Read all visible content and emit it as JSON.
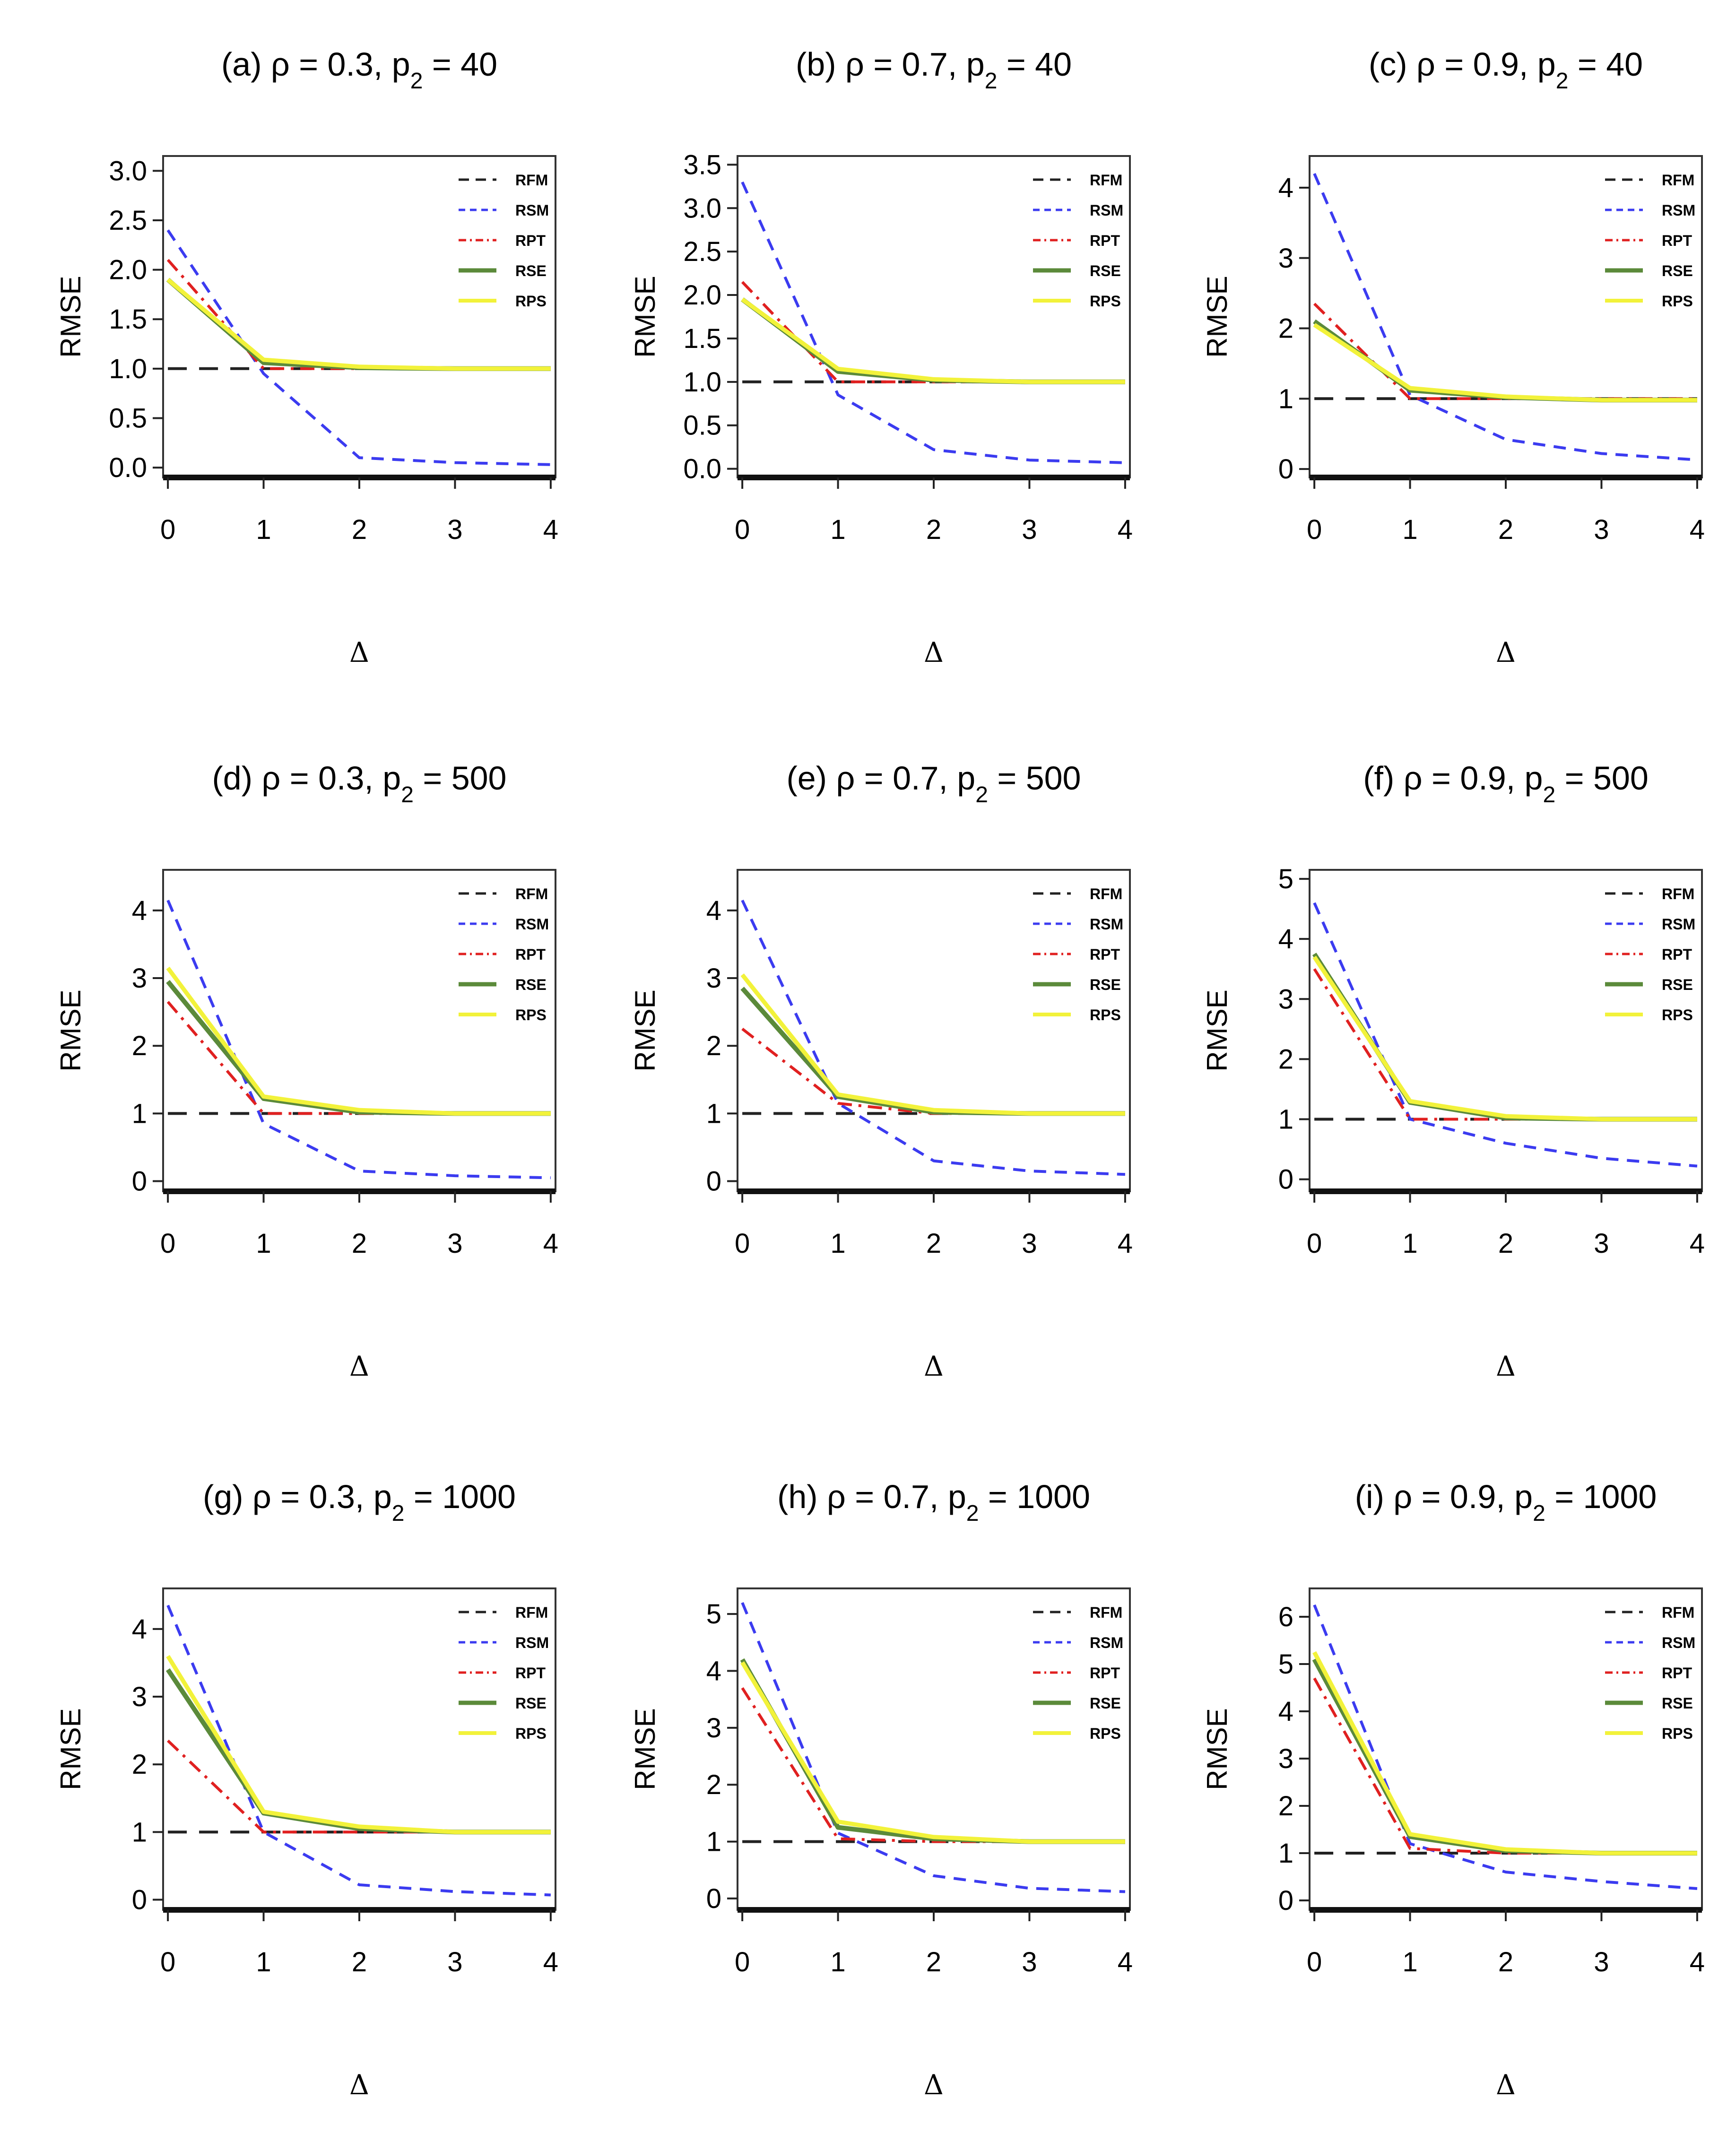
{
  "chart_data": [
    {
      "type": "line",
      "title": {
        "prefix": "(a) ρ = 0.3, p",
        "sub": "2",
        "suffix": " = 40"
      },
      "xlabel": "Δ",
      "ylabel": "RMSE",
      "x": [
        0,
        1,
        2,
        3,
        4
      ],
      "xticks": [
        "0",
        "1",
        "2",
        "3",
        "4"
      ],
      "ylim": [
        -0.1,
        3.15
      ],
      "yticks": [
        0.0,
        0.5,
        1.0,
        1.5,
        2.0,
        2.5,
        3.0
      ],
      "ytick_labels": [
        "0.0",
        "0.5",
        "1.0",
        "1.5",
        "2.0",
        "2.5",
        "3.0"
      ],
      "series": [
        {
          "name": "RFM",
          "values": [
            1.0,
            1.0,
            1.0,
            1.0,
            1.0
          ]
        },
        {
          "name": "RSM",
          "values": [
            2.4,
            0.95,
            0.1,
            0.05,
            0.03
          ]
        },
        {
          "name": "RPT",
          "values": [
            2.1,
            1.0,
            1.0,
            1.0,
            1.0
          ]
        },
        {
          "name": "RSE",
          "values": [
            1.9,
            1.06,
            1.01,
            1.0,
            1.0
          ]
        },
        {
          "name": "RPS",
          "values": [
            1.9,
            1.09,
            1.02,
            1.0,
            1.0
          ]
        }
      ]
    },
    {
      "type": "line",
      "title": {
        "prefix": "(b) ρ = 0.7, p",
        "sub": "2",
        "suffix": " = 40"
      },
      "xlabel": "Δ",
      "ylabel": "RMSE",
      "x": [
        0,
        1,
        2,
        3,
        4
      ],
      "xticks": [
        "0",
        "1",
        "2",
        "3",
        "4"
      ],
      "ylim": [
        -0.1,
        3.6
      ],
      "yticks": [
        0.0,
        0.5,
        1.0,
        1.5,
        2.0,
        2.5,
        3.0,
        3.5
      ],
      "ytick_labels": [
        "0.0",
        "0.5",
        "1.0",
        "1.5",
        "2.0",
        "2.5",
        "3.0",
        "3.5"
      ],
      "series": [
        {
          "name": "RFM",
          "values": [
            1.0,
            1.0,
            1.0,
            1.0,
            1.0
          ]
        },
        {
          "name": "RSM",
          "values": [
            3.3,
            0.85,
            0.22,
            0.1,
            0.07
          ]
        },
        {
          "name": "RPT",
          "values": [
            2.15,
            1.0,
            1.0,
            1.0,
            1.0
          ]
        },
        {
          "name": "RSE",
          "values": [
            1.95,
            1.12,
            1.02,
            1.0,
            1.0
          ]
        },
        {
          "name": "RPS",
          "values": [
            1.95,
            1.15,
            1.03,
            1.0,
            1.0
          ]
        }
      ]
    },
    {
      "type": "line",
      "title": {
        "prefix": "(c) ρ = 0.9, p",
        "sub": "2",
        "suffix": " = 40"
      },
      "xlabel": "Δ",
      "ylabel": "RMSE",
      "x": [
        0,
        1,
        2,
        3,
        4
      ],
      "xticks": [
        "0",
        "1",
        "2",
        "3",
        "4"
      ],
      "ylim": [
        -0.12,
        4.45
      ],
      "yticks": [
        0,
        1,
        2,
        3,
        4
      ],
      "ytick_labels": [
        "0",
        "1",
        "2",
        "3",
        "4"
      ],
      "series": [
        {
          "name": "RFM",
          "values": [
            1.0,
            1.0,
            1.0,
            1.0,
            1.0
          ]
        },
        {
          "name": "RSM",
          "values": [
            4.2,
            1.05,
            0.42,
            0.22,
            0.13
          ]
        },
        {
          "name": "RPT",
          "values": [
            2.35,
            1.0,
            1.0,
            1.0,
            1.0
          ]
        },
        {
          "name": "RSE",
          "values": [
            2.1,
            1.12,
            1.02,
            0.98,
            0.98
          ]
        },
        {
          "name": "RPS",
          "values": [
            2.05,
            1.15,
            1.03,
            0.98,
            0.98
          ]
        }
      ]
    },
    {
      "type": "line",
      "title": {
        "prefix": "(d) ρ = 0.3, p",
        "sub": "2",
        "suffix": " = 500"
      },
      "xlabel": "Δ",
      "ylabel": "RMSE",
      "x": [
        0,
        1,
        2,
        3,
        4
      ],
      "xticks": [
        "0",
        "1",
        "2",
        "3",
        "4"
      ],
      "ylim": [
        -0.15,
        4.6
      ],
      "yticks": [
        0,
        1,
        2,
        3,
        4
      ],
      "ytick_labels": [
        "0",
        "1",
        "2",
        "3",
        "4"
      ],
      "series": [
        {
          "name": "RFM",
          "values": [
            1.0,
            1.0,
            1.0,
            1.0,
            1.0
          ]
        },
        {
          "name": "RSM",
          "values": [
            4.15,
            0.85,
            0.15,
            0.08,
            0.05
          ]
        },
        {
          "name": "RPT",
          "values": [
            2.65,
            1.0,
            1.0,
            1.0,
            1.0
          ]
        },
        {
          "name": "RSE",
          "values": [
            2.95,
            1.22,
            1.02,
            1.0,
            1.0
          ]
        },
        {
          "name": "RPS",
          "values": [
            3.15,
            1.25,
            1.05,
            1.0,
            1.0
          ]
        }
      ]
    },
    {
      "type": "line",
      "title": {
        "prefix": "(e) ρ = 0.7, p",
        "sub": "2",
        "suffix": " = 500"
      },
      "xlabel": "Δ",
      "ylabel": "RMSE",
      "x": [
        0,
        1,
        2,
        3,
        4
      ],
      "xticks": [
        "0",
        "1",
        "2",
        "3",
        "4"
      ],
      "ylim": [
        -0.15,
        4.6
      ],
      "yticks": [
        0,
        1,
        2,
        3,
        4
      ],
      "ytick_labels": [
        "0",
        "1",
        "2",
        "3",
        "4"
      ],
      "series": [
        {
          "name": "RFM",
          "values": [
            1.0,
            1.0,
            1.0,
            1.0,
            1.0
          ]
        },
        {
          "name": "RSM",
          "values": [
            4.15,
            1.15,
            0.3,
            0.15,
            0.1
          ]
        },
        {
          "name": "RPT",
          "values": [
            2.25,
            1.15,
            1.0,
            1.0,
            1.0
          ]
        },
        {
          "name": "RSE",
          "values": [
            2.85,
            1.25,
            1.02,
            1.0,
            1.0
          ]
        },
        {
          "name": "RPS",
          "values": [
            3.05,
            1.28,
            1.05,
            1.0,
            1.0
          ]
        }
      ]
    },
    {
      "type": "line",
      "title": {
        "prefix": "(f) ρ = 0.9, p",
        "sub": "2",
        "suffix": " = 500"
      },
      "xlabel": "Δ",
      "ylabel": "RMSE",
      "x": [
        0,
        1,
        2,
        3,
        4
      ],
      "xticks": [
        "0",
        "1",
        "2",
        "3",
        "4"
      ],
      "ylim": [
        -0.2,
        5.15
      ],
      "yticks": [
        0,
        1,
        2,
        3,
        4,
        5
      ],
      "ytick_labels": [
        "0",
        "1",
        "2",
        "3",
        "4",
        "5"
      ],
      "series": [
        {
          "name": "RFM",
          "values": [
            1.0,
            1.0,
            1.0,
            1.0,
            1.0
          ]
        },
        {
          "name": "RSM",
          "values": [
            4.6,
            1.0,
            0.6,
            0.35,
            0.22
          ]
        },
        {
          "name": "RPT",
          "values": [
            3.5,
            1.0,
            1.0,
            1.0,
            1.0
          ]
        },
        {
          "name": "RSE",
          "values": [
            3.75,
            1.28,
            1.02,
            1.0,
            1.0
          ]
        },
        {
          "name": "RPS",
          "values": [
            3.7,
            1.3,
            1.05,
            1.0,
            1.0
          ]
        }
      ]
    },
    {
      "type": "line",
      "title": {
        "prefix": "(g) ρ = 0.3, p",
        "sub": "2",
        "suffix": " = 1000"
      },
      "xlabel": "Δ",
      "ylabel": "RMSE",
      "x": [
        0,
        1,
        2,
        3,
        4
      ],
      "xticks": [
        "0",
        "1",
        "2",
        "3",
        "4"
      ],
      "ylim": [
        -0.15,
        4.6
      ],
      "yticks": [
        0,
        1,
        2,
        3,
        4
      ],
      "ytick_labels": [
        "0",
        "1",
        "2",
        "3",
        "4"
      ],
      "series": [
        {
          "name": "RFM",
          "values": [
            1.0,
            1.0,
            1.0,
            1.0,
            1.0
          ]
        },
        {
          "name": "RSM",
          "values": [
            4.35,
            1.0,
            0.22,
            0.12,
            0.07
          ]
        },
        {
          "name": "RPT",
          "values": [
            2.35,
            1.0,
            1.0,
            1.0,
            1.0
          ]
        },
        {
          "name": "RSE",
          "values": [
            3.4,
            1.28,
            1.05,
            1.0,
            1.0
          ]
        },
        {
          "name": "RPS",
          "values": [
            3.6,
            1.3,
            1.08,
            1.0,
            1.0
          ]
        }
      ]
    },
    {
      "type": "line",
      "title": {
        "prefix": "(h) ρ = 0.7, p",
        "sub": "2",
        "suffix": " = 1000"
      },
      "xlabel": "Δ",
      "ylabel": "RMSE",
      "x": [
        0,
        1,
        2,
        3,
        4
      ],
      "xticks": [
        "0",
        "1",
        "2",
        "3",
        "4"
      ],
      "ylim": [
        -0.2,
        5.45
      ],
      "yticks": [
        0,
        1,
        2,
        3,
        4,
        5
      ],
      "ytick_labels": [
        "0",
        "1",
        "2",
        "3",
        "4",
        "5"
      ],
      "series": [
        {
          "name": "RFM",
          "values": [
            1.0,
            1.0,
            1.0,
            1.0,
            1.0
          ]
        },
        {
          "name": "RSM",
          "values": [
            5.2,
            1.15,
            0.4,
            0.18,
            0.12
          ]
        },
        {
          "name": "RPT",
          "values": [
            3.7,
            1.05,
            1.0,
            1.0,
            1.0
          ]
        },
        {
          "name": "RSE",
          "values": [
            4.2,
            1.25,
            1.05,
            1.0,
            1.0
          ]
        },
        {
          "name": "RPS",
          "values": [
            4.15,
            1.35,
            1.08,
            1.0,
            1.0
          ]
        }
      ]
    },
    {
      "type": "line",
      "title": {
        "prefix": "(i) ρ = 0.9, p",
        "sub": "2",
        "suffix": " = 1000"
      },
      "xlabel": "Δ",
      "ylabel": "RMSE",
      "x": [
        0,
        1,
        2,
        3,
        4
      ],
      "xticks": [
        "0",
        "1",
        "2",
        "3",
        "4"
      ],
      "ylim": [
        -0.2,
        6.6
      ],
      "yticks": [
        0,
        1,
        2,
        3,
        4,
        5,
        6
      ],
      "ytick_labels": [
        "0",
        "1",
        "2",
        "3",
        "4",
        "5",
        "6"
      ],
      "series": [
        {
          "name": "RFM",
          "values": [
            1.0,
            1.0,
            1.0,
            1.0,
            1.0
          ]
        },
        {
          "name": "RSM",
          "values": [
            6.25,
            1.2,
            0.6,
            0.4,
            0.25
          ]
        },
        {
          "name": "RPT",
          "values": [
            4.7,
            1.1,
            1.0,
            1.0,
            1.0
          ]
        },
        {
          "name": "RSE",
          "values": [
            5.1,
            1.35,
            1.05,
            1.0,
            1.0
          ]
        },
        {
          "name": "RPS",
          "values": [
            5.25,
            1.4,
            1.08,
            1.0,
            1.0
          ]
        }
      ]
    }
  ],
  "legend": {
    "placement": "top-right",
    "entries": [
      "RFM",
      "RSM",
      "RPT",
      "RSE",
      "RPS"
    ]
  },
  "series_styles": {
    "RFM": {
      "color": "#222222",
      "dash": "dashed"
    },
    "RSM": {
      "color": "#3b3bf0",
      "dash": "dotted-dash"
    },
    "RPT": {
      "color": "#e02020",
      "dash": "dot-dash"
    },
    "RSE": {
      "color": "#5b8a3a",
      "dash": "solid"
    },
    "RPS": {
      "color": "#f2f23a",
      "dash": "solid"
    }
  }
}
